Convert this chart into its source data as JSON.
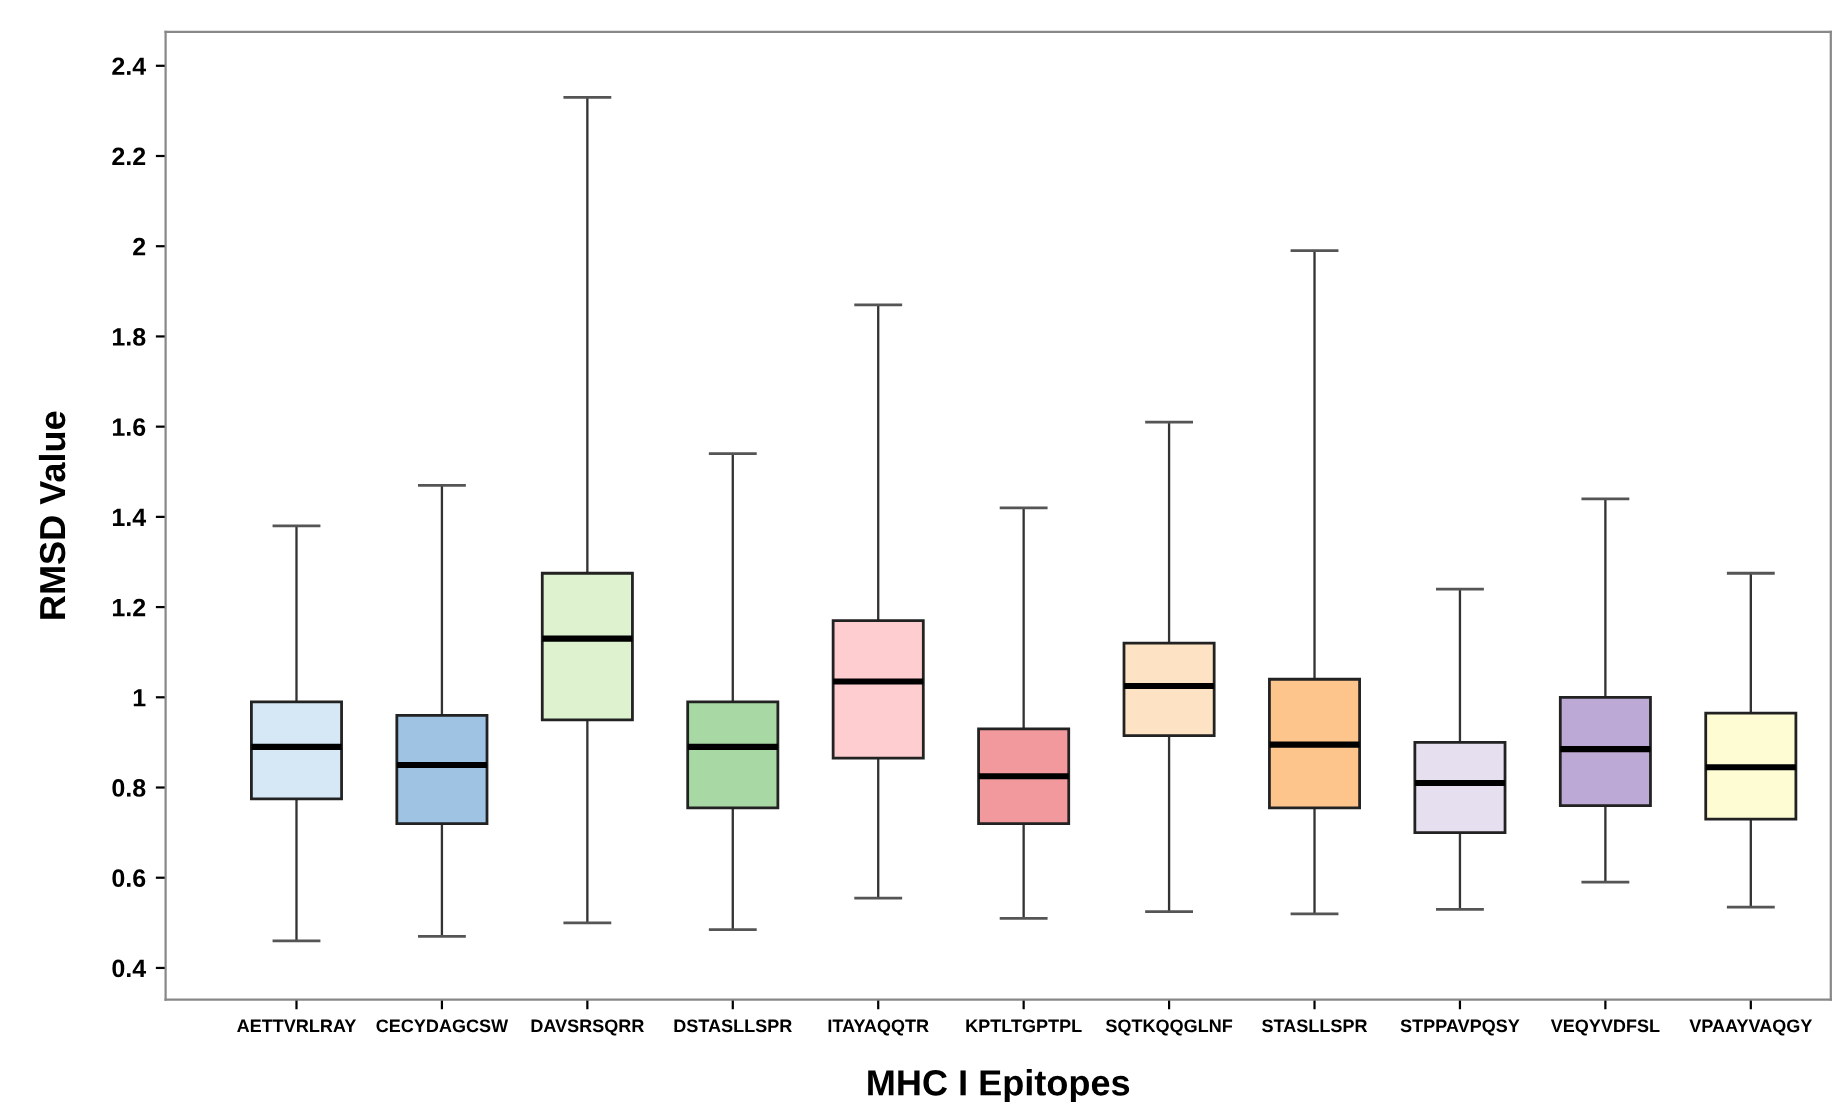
{
  "chart_data": {
    "type": "box",
    "xlabel": "MHC I Epitopes",
    "ylabel": "RMSD Value",
    "categories": [
      "AETTVRLRAY",
      "CECYDAGCSW",
      "DAVSRSQRR",
      "DSTASLLSPR",
      "ITAYAQQTR",
      "KPTLTGPTPL",
      "SQTKQQGLNF",
      "STASLLSPR",
      "STPPAVPQSY",
      "VEQYVDFSL",
      "VPAAYVAQGY"
    ],
    "colors": [
      "#d6e8f5",
      "#9fc3e3",
      "#dff2cf",
      "#a8d9a4",
      "#fecdd0",
      "#f1999c",
      "#fde3c3",
      "#fdc58c",
      "#e6dff0",
      "#bca9d6",
      "#fefcd3"
    ],
    "boxes": [
      {
        "low": 0.46,
        "q1": 0.775,
        "median": 0.89,
        "q3": 0.99,
        "high": 1.38
      },
      {
        "low": 0.47,
        "q1": 0.72,
        "median": 0.85,
        "q3": 0.96,
        "high": 1.47
      },
      {
        "low": 0.5,
        "q1": 0.95,
        "median": 1.13,
        "q3": 1.275,
        "high": 2.33
      },
      {
        "low": 0.485,
        "q1": 0.755,
        "median": 0.89,
        "q3": 0.99,
        "high": 1.54
      },
      {
        "low": 0.555,
        "q1": 0.865,
        "median": 1.035,
        "q3": 1.17,
        "high": 1.87
      },
      {
        "low": 0.51,
        "q1": 0.72,
        "median": 0.825,
        "q3": 0.93,
        "high": 1.42
      },
      {
        "low": 0.525,
        "q1": 0.915,
        "median": 1.025,
        "q3": 1.12,
        "high": 1.61
      },
      {
        "low": 0.52,
        "q1": 0.755,
        "median": 0.895,
        "q3": 1.04,
        "high": 1.99
      },
      {
        "low": 0.53,
        "q1": 0.7,
        "median": 0.81,
        "q3": 0.9,
        "high": 1.24
      },
      {
        "low": 0.59,
        "q1": 0.76,
        "median": 0.885,
        "q3": 1.0,
        "high": 1.44
      },
      {
        "low": 0.535,
        "q1": 0.73,
        "median": 0.845,
        "q3": 0.965,
        "high": 1.275
      }
    ],
    "ylim": [
      0.33,
      2.475
    ],
    "yticks": [
      0.4,
      0.6,
      0.8,
      1,
      1.2,
      1.4,
      1.6,
      1.8,
      2,
      2.2,
      2.4
    ],
    "grid": false
  }
}
